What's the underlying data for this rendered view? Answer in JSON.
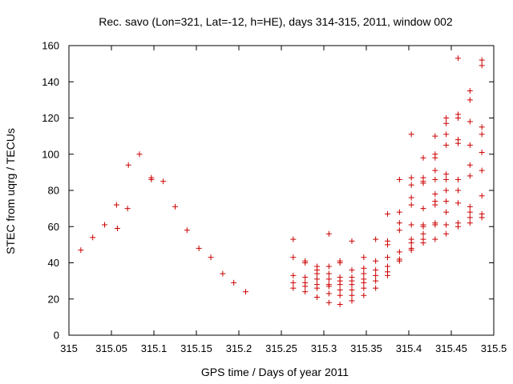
{
  "chart_data": {
    "type": "scatter",
    "title": "Rec. savo (Lon=321, Lat=-12, h=HE), days 314-315, 2011, window 002",
    "xlabel": "GPS time / Days of year 2011",
    "ylabel": "STEC from uqrg / TECUs",
    "xlim": [
      315,
      315.5
    ],
    "ylim": [
      0,
      160
    ],
    "x_ticks": [
      "315",
      "315.05",
      "315.1",
      "315.15",
      "315.2",
      "315.25",
      "315.3",
      "315.35",
      "315.4",
      "315.45",
      "315.5"
    ],
    "y_ticks": [
      "0",
      "20",
      "40",
      "60",
      "80",
      "100",
      "120",
      "140",
      "160"
    ],
    "grid": false,
    "legend": "none",
    "marker": "plus",
    "color": "#cc0000",
    "points": [
      [
        315.014,
        47
      ],
      [
        315.028,
        54
      ],
      [
        315.042,
        61
      ],
      [
        315.056,
        72
      ],
      [
        315.057,
        59
      ],
      [
        315.069,
        70
      ],
      [
        315.07,
        94
      ],
      [
        315.083,
        100
      ],
      [
        315.097,
        87
      ],
      [
        315.097,
        86
      ],
      [
        315.111,
        85
      ],
      [
        315.125,
        71
      ],
      [
        315.139,
        58
      ],
      [
        315.153,
        48
      ],
      [
        315.167,
        43
      ],
      [
        315.181,
        34
      ],
      [
        315.194,
        29
      ],
      [
        315.208,
        24
      ],
      [
        315.264,
        53
      ],
      [
        315.264,
        43
      ],
      [
        315.264,
        33
      ],
      [
        315.264,
        29
      ],
      [
        315.264,
        26
      ],
      [
        315.278,
        41
      ],
      [
        315.278,
        40
      ],
      [
        315.278,
        32
      ],
      [
        315.278,
        29
      ],
      [
        315.278,
        27
      ],
      [
        315.278,
        24
      ],
      [
        315.292,
        38
      ],
      [
        315.292,
        36
      ],
      [
        315.292,
        34
      ],
      [
        315.292,
        31
      ],
      [
        315.292,
        28
      ],
      [
        315.292,
        26
      ],
      [
        315.292,
        21
      ],
      [
        315.306,
        56
      ],
      [
        315.306,
        38
      ],
      [
        315.306,
        34
      ],
      [
        315.306,
        31
      ],
      [
        315.306,
        28
      ],
      [
        315.306,
        27
      ],
      [
        315.306,
        23
      ],
      [
        315.306,
        18
      ],
      [
        315.319,
        41
      ],
      [
        315.319,
        40
      ],
      [
        315.319,
        32
      ],
      [
        315.319,
        30
      ],
      [
        315.319,
        28
      ],
      [
        315.319,
        25
      ],
      [
        315.319,
        22
      ],
      [
        315.319,
        17
      ],
      [
        315.333,
        52
      ],
      [
        315.333,
        36
      ],
      [
        315.333,
        32
      ],
      [
        315.333,
        30
      ],
      [
        315.333,
        28
      ],
      [
        315.333,
        25
      ],
      [
        315.333,
        22
      ],
      [
        315.333,
        19
      ],
      [
        315.347,
        43
      ],
      [
        315.347,
        37
      ],
      [
        315.347,
        34
      ],
      [
        315.347,
        31
      ],
      [
        315.347,
        29
      ],
      [
        315.347,
        26
      ],
      [
        315.347,
        22
      ],
      [
        315.361,
        53
      ],
      [
        315.361,
        41
      ],
      [
        315.361,
        36
      ],
      [
        315.361,
        33
      ],
      [
        315.361,
        30
      ],
      [
        315.361,
        26
      ],
      [
        315.375,
        67
      ],
      [
        315.375,
        52
      ],
      [
        315.375,
        50
      ],
      [
        315.375,
        43
      ],
      [
        315.375,
        38
      ],
      [
        315.375,
        35
      ],
      [
        315.375,
        33
      ],
      [
        315.389,
        86
      ],
      [
        315.389,
        68
      ],
      [
        315.389,
        62
      ],
      [
        315.389,
        58
      ],
      [
        315.389,
        46
      ],
      [
        315.389,
        42
      ],
      [
        315.389,
        41
      ],
      [
        315.403,
        111
      ],
      [
        315.403,
        87
      ],
      [
        315.403,
        83
      ],
      [
        315.403,
        76
      ],
      [
        315.403,
        72
      ],
      [
        315.403,
        61
      ],
      [
        315.403,
        53
      ],
      [
        315.403,
        51
      ],
      [
        315.403,
        48
      ],
      [
        315.403,
        47
      ],
      [
        315.417,
        98
      ],
      [
        315.417,
        87
      ],
      [
        315.417,
        85
      ],
      [
        315.417,
        84
      ],
      [
        315.417,
        70
      ],
      [
        315.417,
        61
      ],
      [
        315.417,
        60
      ],
      [
        315.417,
        56
      ],
      [
        315.417,
        53
      ],
      [
        315.417,
        51
      ],
      [
        315.431,
        110
      ],
      [
        315.431,
        100
      ],
      [
        315.431,
        98
      ],
      [
        315.431,
        91
      ],
      [
        315.431,
        86
      ],
      [
        315.431,
        78
      ],
      [
        315.431,
        74
      ],
      [
        315.431,
        72
      ],
      [
        315.431,
        62
      ],
      [
        315.431,
        61
      ],
      [
        315.431,
        53
      ],
      [
        315.444,
        120
      ],
      [
        315.444,
        117
      ],
      [
        315.444,
        111
      ],
      [
        315.444,
        105
      ],
      [
        315.444,
        89
      ],
      [
        315.444,
        86
      ],
      [
        315.444,
        80
      ],
      [
        315.444,
        74
      ],
      [
        315.444,
        68
      ],
      [
        315.444,
        61
      ],
      [
        315.444,
        56
      ],
      [
        315.458,
        153
      ],
      [
        315.458,
        122
      ],
      [
        315.458,
        120
      ],
      [
        315.458,
        108
      ],
      [
        315.458,
        106
      ],
      [
        315.458,
        86
      ],
      [
        315.458,
        80
      ],
      [
        315.458,
        73
      ],
      [
        315.458,
        62
      ],
      [
        315.458,
        60
      ],
      [
        315.472,
        135
      ],
      [
        315.472,
        130
      ],
      [
        315.472,
        118
      ],
      [
        315.472,
        105
      ],
      [
        315.472,
        94
      ],
      [
        315.472,
        88
      ],
      [
        315.472,
        71
      ],
      [
        315.472,
        68
      ],
      [
        315.472,
        65
      ],
      [
        315.472,
        62
      ],
      [
        315.486,
        152
      ],
      [
        315.486,
        149
      ],
      [
        315.486,
        115
      ],
      [
        315.486,
        111
      ],
      [
        315.486,
        101
      ],
      [
        315.486,
        91
      ],
      [
        315.486,
        77
      ],
      [
        315.486,
        67
      ],
      [
        315.486,
        65
      ]
    ]
  }
}
